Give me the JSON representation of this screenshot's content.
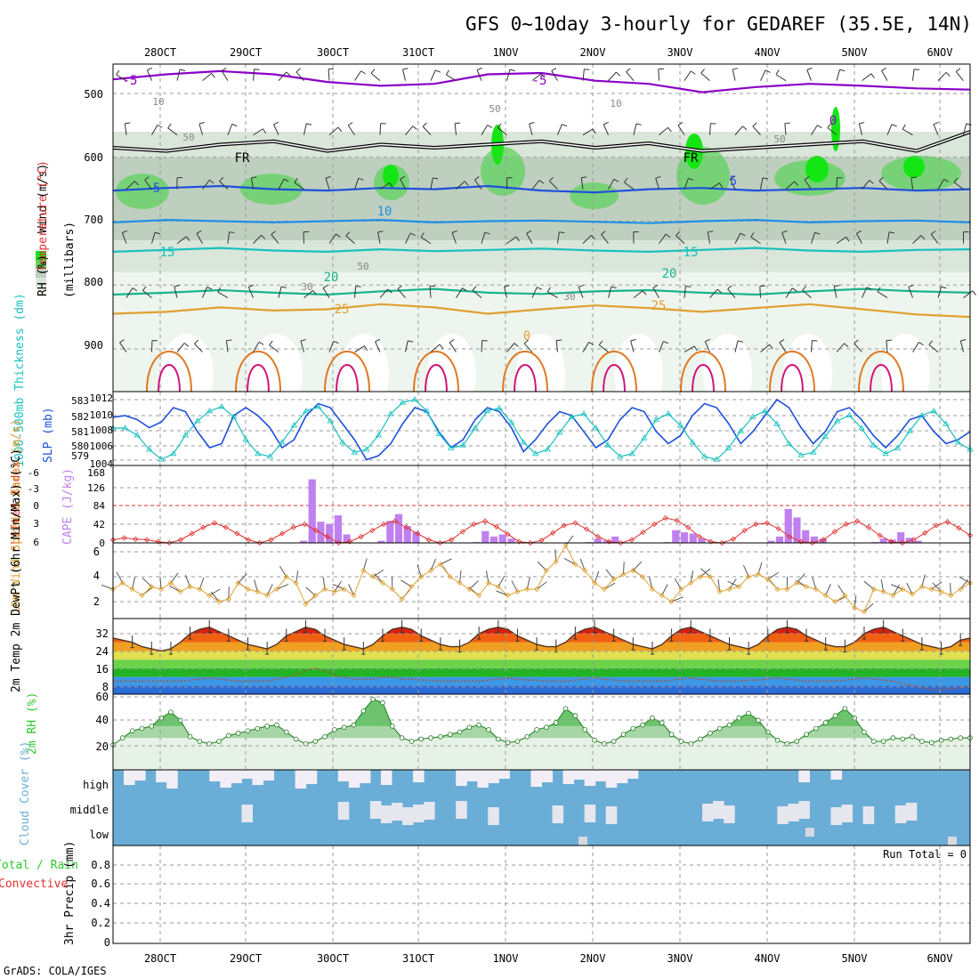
{
  "chart_data": {
    "type": "meteogram",
    "title": "GFS 0~10day 3-hourly for GEDAREF (35.5E, 14N)",
    "footer": "GrADS: COLA/IGES",
    "dates": [
      "28OCT",
      "29OCT",
      "30OCT",
      "31OCT",
      "1NOV",
      "2NOV",
      "3NOV",
      "4NOV",
      "5NOV",
      "6NOV"
    ],
    "colors": {
      "purple": "#8a00c8",
      "blue": "#1e50dc",
      "lightblue": "#1e90e6",
      "cyan": "#18c0c0",
      "teal": "#18b48c",
      "orange": "#e0a030",
      "darkorange": "#e07820",
      "magenta": "#d0147a",
      "green": "#30c830",
      "brightgreen": "#14e614",
      "red": "#e03030",
      "violet": "#c080f0",
      "sky": "#6aaed8"
    },
    "panels": {
      "upper": {
        "ylabel_parts": [
          "Wind (m/s)",
          "Temperature (°C)",
          "(millibars)"
        ],
        "rh_label": "RH (%)",
        "yticks": [
          "500",
          "600",
          "700",
          "800",
          "900"
        ],
        "temp_contours": [
          {
            "label": "-5",
            "p": [
              478,
              470,
              465,
              470,
              482,
              488,
              485,
              470,
              468,
              480,
              485,
              498,
              490,
              485,
              488,
              492,
              494
            ]
          },
          {
            "label": "5",
            "p": [
              652,
              648,
              645,
              650,
              652,
              648,
              650,
              645,
              652,
              655,
              650,
              648,
              652,
              650,
              648,
              652,
              650
            ]
          },
          {
            "label": "10",
            "p": [
              702,
              698,
              700,
              702,
              700,
              698,
              702,
              700,
              699,
              701,
              703,
              700,
              698,
              702,
              700,
              699,
              702
            ]
          },
          {
            "label": "15",
            "p": [
              748,
              745,
              742,
              746,
              748,
              744,
              747,
              745,
              743,
              746,
              748,
              745,
              742,
              746,
              748,
              745,
              744
            ]
          },
          {
            "label": "20",
            "p": [
              815,
              812,
              808,
              812,
              815,
              810,
              806,
              812,
              814,
              810,
              808,
              812,
              815,
              810,
              806,
              810,
              812
            ]
          },
          {
            "label": "25",
            "p": [
              845,
              842,
              835,
              840,
              838,
              830,
              835,
              845,
              838,
              832,
              836,
              842,
              836,
              830,
              838,
              846,
              850
            ]
          }
        ],
        "contour_labels": [
          "-5",
          "-5",
          "5",
          "5",
          "10",
          "15",
          "15",
          "20",
          "20",
          "25",
          "25",
          "FR",
          "FR",
          "0",
          "0",
          "10",
          "10",
          "50",
          "50",
          "50",
          "30",
          "30"
        ],
        "labels_more": [
          "-5",
          "FR",
          "0",
          "10",
          "50",
          "30",
          "0"
        ]
      },
      "slp": {
        "title": "SLP (mb)",
        "title2": "1000-500mb Thickness (dm)",
        "yticks_left": [
          "583",
          "582",
          "581",
          "580",
          "579"
        ],
        "yticks_right": [
          "1012",
          "1010",
          "1008",
          "1006",
          "1004"
        ],
        "slp": [
          1009.8,
          1010,
          1009.5,
          1008.5,
          1009.2,
          1011,
          1010.5,
          1008,
          1006,
          1006.5,
          1010,
          1011,
          1010,
          1008.5,
          1006,
          1007,
          1010,
          1011.5,
          1011,
          1009,
          1007,
          1004.5,
          1005,
          1006.5,
          1009,
          1011,
          1010.5,
          1008,
          1006,
          1007,
          1009.5,
          1011,
          1010.5,
          1008.5,
          1005.5,
          1007,
          1009,
          1010.5,
          1010,
          1008,
          1006,
          1007,
          1009.5,
          1011,
          1010.5,
          1008,
          1006.5,
          1007.5,
          1010,
          1011.5,
          1011,
          1009,
          1006.5,
          1008,
          1010,
          1012,
          1011,
          1008.5,
          1006.5,
          1008,
          1010.5,
          1011,
          1009.5,
          1007.5,
          1006,
          1007.5,
          1009.5,
          1010,
          1008,
          1006.5,
          1007,
          1008
        ],
        "thickness": [
          581,
          581,
          580.5,
          579.5,
          578.8,
          579.2,
          580.5,
          581.5,
          582.2,
          582.5,
          581.8,
          580.2,
          579.2,
          579,
          580,
          581.2,
          582.2,
          582.5,
          581.5,
          580,
          579.3,
          579.5,
          580.5,
          582,
          582.8,
          583,
          582.2,
          580.6,
          579.6,
          579.8,
          581,
          582.2,
          582.4,
          581.4,
          580,
          579.2,
          579.5,
          580.7,
          581.8,
          582,
          581,
          579.8,
          579,
          579.2,
          580.3,
          581.6,
          582,
          581.2,
          580,
          579,
          578.8,
          579.6,
          580.8,
          581.8,
          582.2,
          581.3,
          579.9,
          579.1,
          579.3,
          580.4,
          581.5,
          581.9,
          581,
          579.8,
          579.2,
          579.6,
          580.8,
          581.9,
          582.2,
          581.3,
          580,
          579.5
        ]
      },
      "cape": {
        "title": "CAPE (J/kg)",
        "title2": "Lifted Index",
        "yticks_left": [
          "-6",
          "-3",
          "0",
          "3",
          "6"
        ],
        "yticks_right": [
          "168",
          "126",
          "84",
          "42",
          "0"
        ],
        "cape": [
          0,
          0,
          0,
          0,
          0,
          0,
          0,
          0,
          0,
          0,
          0,
          0,
          0,
          0,
          0,
          0,
          0,
          0,
          0,
          0,
          0,
          0,
          5,
          150,
          50,
          45,
          65,
          20,
          0,
          0,
          0,
          5,
          52,
          68,
          40,
          25,
          0,
          0,
          0,
          0,
          0,
          0,
          2,
          28,
          15,
          20,
          10,
          0,
          0,
          0,
          0,
          0,
          0,
          0,
          0,
          2,
          10,
          5,
          15,
          0,
          0,
          0,
          0,
          0,
          2,
          30,
          25,
          22,
          10,
          0,
          0,
          0,
          0,
          0,
          0,
          0,
          5,
          15,
          80,
          60,
          30,
          15,
          10,
          0,
          0,
          0,
          0,
          0,
          2,
          10,
          8,
          25,
          12,
          5,
          0,
          0,
          0,
          0,
          0,
          0
        ],
        "li": [
          5.5,
          5.2,
          5.4,
          5.5,
          5.8,
          6,
          5.5,
          4.5,
          3.5,
          2.8,
          3.5,
          4.5,
          5.5,
          6,
          5.5,
          4.5,
          3.5,
          3,
          4,
          5,
          6,
          5.8,
          5,
          4,
          3,
          2.5,
          3.5,
          4.5,
          5.5,
          6,
          5.5,
          4.2,
          3,
          2.5,
          3.4,
          4.6,
          5.8,
          6,
          5.6,
          4.4,
          3.2,
          2.8,
          3.8,
          5,
          5.8,
          6,
          5.5,
          4.3,
          3,
          2,
          2.4,
          3.5,
          5,
          5.8,
          6,
          5.4,
          4,
          3,
          2.8,
          3.7,
          5,
          5.8,
          6,
          5.5,
          4.2,
          3,
          2.5,
          3.5,
          4.8,
          5.8,
          6,
          5.5,
          4.4,
          3.2,
          2.6,
          3.6,
          4.8
        ]
      },
      "wind": {
        "title": "10m Wind Speed & Barbs (m/s)",
        "yticks": [
          "6",
          "4",
          "2"
        ],
        "speed": [
          3,
          3.5,
          3,
          2.5,
          3.2,
          3,
          3.5,
          2.8,
          3.2,
          3,
          2.5,
          2,
          2.2,
          3.5,
          3,
          2.8,
          2.5,
          3,
          4,
          3.5,
          1.8,
          2.5,
          3,
          2.8,
          3,
          2.5,
          4.5,
          4,
          3.5,
          3,
          2.2,
          3.2,
          4,
          4.5,
          5,
          4,
          3.5,
          3,
          2.5,
          3.5,
          3.2,
          2.5,
          2.8,
          3,
          3,
          4.5,
          5.2,
          6.5,
          5,
          4.5,
          3.5,
          3,
          3.8,
          4.2,
          4.5,
          4,
          3,
          2.5,
          2,
          3,
          3.5,
          4,
          4,
          2.8,
          3,
          3.2,
          4,
          4.2,
          3.8,
          3,
          3,
          3.5,
          3.2,
          3,
          2.5,
          2,
          2.5,
          1.5,
          1.2,
          3,
          2.8,
          2.5,
          3,
          2.6,
          3.2,
          3,
          2.8,
          2.5,
          3,
          3.5
        ]
      },
      "temp2m": {
        "title": "2m Temp 2m DewPt (6hr Min/Max) (°C)",
        "yticks": [
          "32",
          "24",
          "16",
          "8"
        ],
        "temp": [
          30,
          29,
          28,
          26,
          25,
          24,
          25,
          28,
          32,
          34,
          35,
          33,
          31,
          29,
          27,
          26,
          25,
          27,
          31,
          33,
          35,
          34,
          31,
          29,
          27,
          26,
          25,
          27,
          31,
          34,
          35,
          34,
          31,
          29,
          27,
          26,
          26,
          28,
          32,
          34,
          35,
          34,
          31,
          29,
          27,
          26,
          26,
          28,
          32,
          34,
          35,
          33,
          31,
          29,
          27,
          26,
          25,
          27,
          31,
          34,
          35,
          33,
          31,
          29,
          27,
          26,
          25,
          27,
          31,
          34,
          35,
          34,
          31,
          29,
          27,
          26,
          26,
          28,
          32,
          34,
          35,
          33,
          31,
          29,
          27,
          26,
          25,
          26,
          29,
          30
        ],
        "dewpt": [
          10,
          10,
          10,
          10,
          10,
          10,
          10,
          10,
          10.5,
          11,
          11.5,
          11,
          10.5,
          10,
          10,
          10,
          10,
          11,
          12,
          13,
          15,
          16,
          15,
          13,
          12,
          11,
          11,
          11,
          12,
          12,
          11,
          11,
          10.5,
          10.5,
          10,
          10,
          10,
          10,
          10,
          10.5,
          11,
          11.5,
          11,
          10.5,
          10.5,
          10,
          10,
          10,
          10.5,
          11,
          11.5,
          11,
          10.5,
          10,
          10,
          10,
          10,
          10,
          10.5,
          11,
          11.5,
          11,
          10.5,
          10,
          10,
          10,
          10.5,
          10.5,
          11,
          11.5,
          11,
          10.5,
          10,
          10,
          10,
          10,
          10.5,
          11,
          11.5,
          11,
          10.5,
          10,
          9,
          8,
          7,
          6,
          6,
          6.5,
          7,
          7.5
        ]
      },
      "rh2m": {
        "title": "2m RH (%)",
        "yticks": [
          "60",
          "40",
          "20"
        ],
        "rh": [
          19,
          25,
          31,
          33,
          35,
          42,
          47,
          40,
          26,
          22,
          20,
          22,
          27,
          29,
          31,
          33,
          35,
          36,
          30,
          24,
          20,
          22,
          26,
          32,
          34,
          36,
          48,
          58,
          55,
          35,
          25,
          22,
          24,
          25,
          26,
          28,
          30,
          34,
          36,
          32,
          24,
          21,
          22,
          26,
          32,
          34,
          38,
          50,
          44,
          32,
          23,
          20,
          22,
          28,
          33,
          36,
          42,
          38,
          28,
          22,
          20,
          24,
          29,
          33,
          36,
          42,
          46,
          40,
          30,
          23,
          20,
          22,
          28,
          33,
          38,
          44,
          50,
          42,
          30,
          22,
          22,
          25,
          24,
          26,
          22,
          21,
          23,
          24,
          25,
          25
        ]
      },
      "cloud": {
        "title": "Cloud Cover (%)",
        "levels": [
          "high",
          "middle",
          "low"
        ]
      },
      "precip": {
        "title": "3hr Precip (mm)",
        "title2": "Total / Rain",
        "title3": "Convective",
        "run_total": "Run Total = 0",
        "yticks": [
          "0.8",
          "0.6",
          "0.4",
          "0.2",
          "0"
        ]
      }
    }
  }
}
